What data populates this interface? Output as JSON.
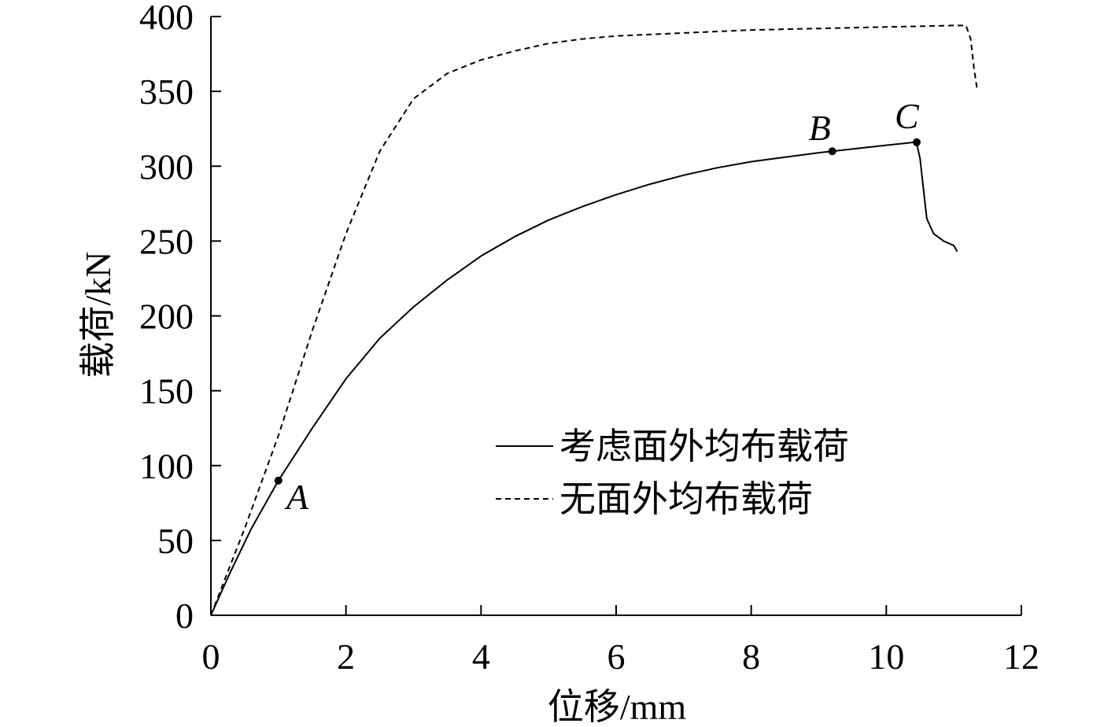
{
  "chart_data": {
    "type": "line",
    "xlabel": "位移/mm",
    "ylabel": "载荷/kN",
    "xlim": [
      0,
      12
    ],
    "ylim": [
      0,
      400
    ],
    "xticks": [
      0,
      2,
      4,
      6,
      8,
      10,
      12
    ],
    "yticks": [
      0,
      50,
      100,
      150,
      200,
      250,
      300,
      350,
      400
    ],
    "grid": false,
    "legend_position": "lower-right",
    "series": [
      {
        "name": "考虑面外均布载荷",
        "style": "solid",
        "color": "#000000",
        "x": [
          0,
          0.3,
          0.6,
          1.0,
          1.5,
          2.0,
          2.5,
          3.0,
          3.5,
          4.0,
          4.5,
          5.0,
          5.5,
          6.0,
          6.5,
          7.0,
          7.5,
          8.0,
          8.5,
          9.0,
          9.2,
          9.6,
          10.0,
          10.42,
          10.45,
          10.5,
          10.55,
          10.6,
          10.7,
          10.85,
          11.0,
          11.05
        ],
        "y": [
          0,
          30,
          58,
          90,
          125,
          158,
          185,
          206,
          224,
          240,
          253,
          264,
          273,
          281,
          288,
          294,
          299,
          303,
          306,
          309,
          310,
          312,
          314,
          316,
          315,
          305,
          285,
          265,
          255,
          250,
          247,
          243
        ]
      },
      {
        "name": "无面外均布载荷",
        "style": "dashed",
        "color": "#000000",
        "x": [
          0,
          0.5,
          1.0,
          1.5,
          2.0,
          2.5,
          3.0,
          3.5,
          4.0,
          4.5,
          5.0,
          5.5,
          6.0,
          7.0,
          8.0,
          9.0,
          10.0,
          11.0,
          11.18,
          11.25,
          11.3,
          11.35
        ],
        "y": [
          0,
          58,
          120,
          190,
          255,
          310,
          345,
          362,
          371,
          377,
          382,
          385,
          387,
          389,
          391,
          392,
          393,
          394,
          394,
          385,
          365,
          350
        ]
      }
    ],
    "points": [
      {
        "label": "A",
        "x": 1.0,
        "y": 90
      },
      {
        "label": "B",
        "x": 9.2,
        "y": 310
      },
      {
        "label": "C",
        "x": 10.45,
        "y": 316
      }
    ]
  }
}
